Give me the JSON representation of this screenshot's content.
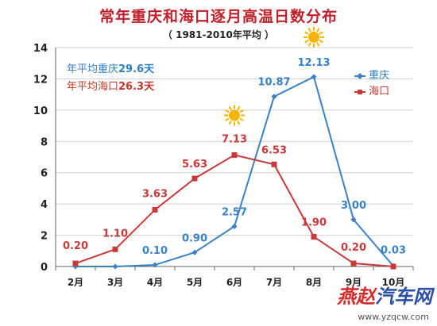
{
  "title": "常年重庆和海口逐月高温日数分布",
  "subtitle": "（ 1981-2010年平均 ）",
  "notes": {
    "cq_prefix": "年平均重庆",
    "cq_value": "29.6天",
    "hk_prefix": "年平均海口",
    "hk_value": "26.3天"
  },
  "watermark": {
    "part1": "燕赵",
    "part2": "汽车网",
    "url": "www.yzqcw.com"
  },
  "colors": {
    "chongqing": "#3a82c8",
    "haikou": "#c8393a",
    "grid": "#d0d0d0",
    "axis": "#666666",
    "sun": "#f5b400"
  },
  "chart_data": {
    "type": "line",
    "categories": [
      "2月",
      "3月",
      "4月",
      "5月",
      "6月",
      "7月",
      "8月",
      "9月",
      "10月"
    ],
    "ylim": [
      0,
      14
    ],
    "yticks": [
      0,
      2,
      4,
      6,
      8,
      10,
      12,
      14
    ],
    "grid": true,
    "legend_position": "top-right",
    "series": [
      {
        "name": "重庆",
        "color": "#3a82c8",
        "marker": "diamond",
        "values": [
          0,
          0,
          0.1,
          0.9,
          2.57,
          10.87,
          12.13,
          3.0,
          0.03
        ],
        "labels": [
          null,
          null,
          "0.10",
          "0.90",
          "2.57",
          "10.87",
          "12.13",
          "3.00",
          "0.03"
        ]
      },
      {
        "name": "海口",
        "color": "#c8393a",
        "marker": "square",
        "values": [
          0.2,
          1.1,
          3.63,
          5.63,
          7.13,
          6.53,
          1.9,
          0.2,
          0
        ],
        "labels": [
          "0.20",
          "1.10",
          "3.63",
          "5.63",
          "7.13",
          "6.53",
          "1.90",
          "0.20",
          null
        ]
      }
    ],
    "annotations": [
      {
        "icon": "sun-icon",
        "category": "6月",
        "series": "海口"
      },
      {
        "icon": "sun-icon",
        "category": "8月",
        "series": "重庆"
      }
    ]
  }
}
